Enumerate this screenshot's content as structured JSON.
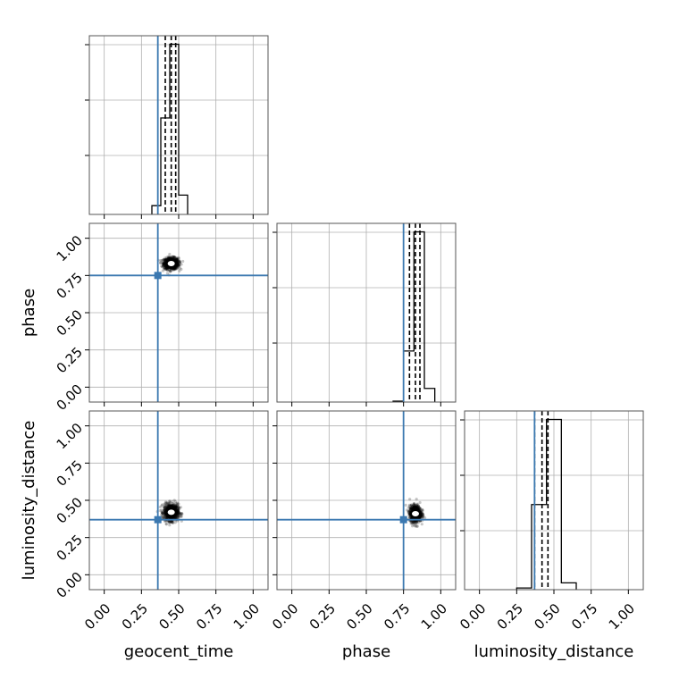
{
  "chart_data": {
    "type": "corner",
    "parameters": [
      "geocent_time",
      "phase",
      "luminosity_distance"
    ],
    "axis_range": [
      -0.1,
      1.1
    ],
    "ticks": [
      0.0,
      0.25,
      0.5,
      0.75,
      1.0
    ],
    "tick_labels": [
      "0.00",
      "0.25",
      "0.50",
      "0.75",
      "1.00"
    ],
    "grid": true,
    "colors": {
      "truth": "#3b78b0",
      "histogram": "#000000",
      "quantile": "#000000",
      "samples": "#000000",
      "frame": "#555555",
      "grid": "#b0b0b0"
    },
    "truths": {
      "geocent_time": 0.36,
      "phase": 0.75,
      "luminosity_distance": 0.37
    },
    "histograms": [
      {
        "parameter": "geocent_time",
        "bin_edges": [
          0.32,
          0.38,
          0.44,
          0.5,
          0.56
        ],
        "counts": [
          0.05,
          0.55,
          0.97,
          0.11
        ],
        "quantiles": [
          0.41,
          0.45,
          0.48
        ]
      },
      {
        "parameter": "phase",
        "bin_edges": [
          0.68,
          0.75,
          0.82,
          0.89,
          0.96
        ],
        "counts": [
          0.005,
          0.3,
          1.0,
          0.08
        ],
        "quantiles": [
          0.79,
          0.83,
          0.86
        ]
      },
      {
        "parameter": "luminosity_distance",
        "bin_edges": [
          0.25,
          0.35,
          0.45,
          0.55,
          0.65
        ],
        "counts": [
          0.01,
          0.5,
          1.0,
          0.04
        ],
        "quantiles": [
          0.37,
          0.42,
          0.46
        ]
      }
    ],
    "scatter_panels": [
      {
        "x": "geocent_time",
        "y": "phase",
        "center": [
          0.45,
          0.83
        ],
        "spread": [
          0.045,
          0.035
        ]
      },
      {
        "x": "geocent_time",
        "y": "luminosity_distance",
        "center": [
          0.45,
          0.42
        ],
        "spread": [
          0.045,
          0.05
        ]
      },
      {
        "x": "phase",
        "y": "luminosity_distance",
        "center": [
          0.83,
          0.41
        ],
        "spread": [
          0.035,
          0.05
        ]
      }
    ]
  }
}
